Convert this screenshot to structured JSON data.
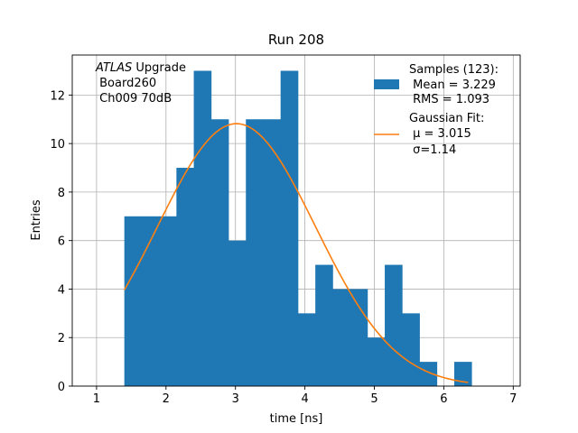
{
  "chart_data": {
    "type": "bar",
    "title": "Run 208",
    "xlabel": "time [ns]",
    "ylabel": "Entries",
    "xlim": [
      0.65,
      7.1
    ],
    "ylim": [
      0,
      13.65
    ],
    "xticks": [
      1,
      2,
      3,
      4,
      5,
      6,
      7
    ],
    "yticks": [
      0,
      2,
      4,
      6,
      8,
      10,
      12
    ],
    "grid": true,
    "bin_width": 0.25,
    "bins_left_edges": [
      1.4,
      1.65,
      1.9,
      2.15,
      2.4,
      2.65,
      2.9,
      3.15,
      3.4,
      3.65,
      3.9,
      4.15,
      4.4,
      4.65,
      4.9,
      5.15,
      5.4,
      5.65,
      5.9,
      6.15
    ],
    "counts": [
      7,
      7,
      7,
      9,
      13,
      11,
      6,
      11,
      11,
      13,
      3,
      5,
      4,
      4,
      2,
      5,
      3,
      1,
      0,
      1
    ],
    "bar_color": "#1f77b4",
    "fit": {
      "mu": 3.015,
      "sigma": 1.14,
      "amplitude": 10.82,
      "x_range": [
        1.4,
        6.35
      ],
      "color": "#ff7f0e"
    },
    "annotation": {
      "italic": "ATLAS",
      "line1_rest": " Upgrade",
      "line2": " Board260",
      "line3": " Ch009 70dB"
    },
    "legend": {
      "position": "top-right",
      "samples_title": "Samples (123):",
      "samples_mean": " Mean = 3.229",
      "samples_rms": " RMS = 1.093",
      "fit_title": "Gaussian Fit:",
      "fit_mu": " μ = 3.015",
      "fit_sigma": " σ=1.14"
    }
  }
}
